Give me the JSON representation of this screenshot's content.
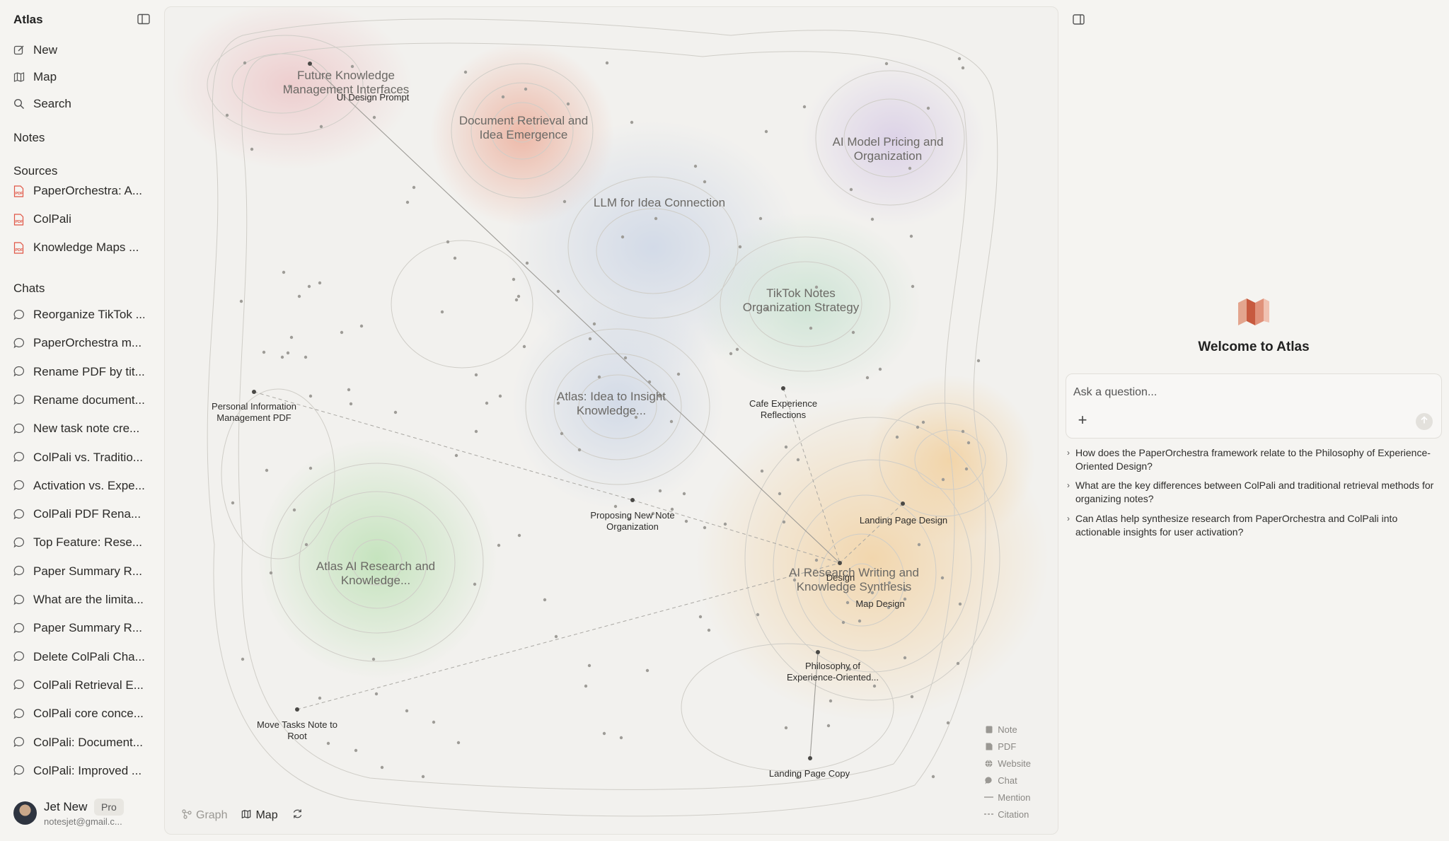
{
  "app": {
    "title": "Atlas"
  },
  "sidebar": {
    "nav": [
      {
        "label": "New",
        "icon": "edit-icon"
      },
      {
        "label": "Map",
        "icon": "map-icon"
      },
      {
        "label": "Search",
        "icon": "search-icon"
      }
    ],
    "notes_title": "Notes",
    "sources_title": "Sources",
    "sources": [
      {
        "label": "PaperOrchestra: A...",
        "icon": "pdf-icon"
      },
      {
        "label": "ColPali",
        "icon": "pdf-icon"
      },
      {
        "label": "Knowledge Maps ...",
        "icon": "pdf-icon"
      }
    ],
    "chats_title": "Chats",
    "chats": [
      "Reorganize TikTok ...",
      "PaperOrchestra m...",
      "Rename PDF by tit...",
      "Rename document...",
      "New task note cre...",
      "ColPali vs. Traditio...",
      "Activation vs. Expe...",
      "ColPali PDF Rena...",
      "Top Feature: Rese...",
      "Paper Summary R...",
      "What are the limita...",
      "Paper Summary R...",
      "Delete ColPali Cha...",
      "ColPali Retrieval E...",
      "ColPali core conce...",
      "ColPali: Document...",
      "ColPali: Improved ..."
    ],
    "user": {
      "name": "Jet New",
      "plan": "Pro",
      "email": "notesjet@gmail.c..."
    }
  },
  "map": {
    "clusters": [
      {
        "label": "Future Knowledge\nManagement Interfaces",
        "color": "#e9a3a8"
      },
      {
        "label": "Document Retrieval and\nIdea Emergence",
        "color": "#e9967a"
      },
      {
        "label": "AI Model Pricing and\nOrganization",
        "color": "#c6b3df"
      },
      {
        "label": "LLM for Idea Connection",
        "color": "#b9c7de"
      },
      {
        "label": "TikTok Notes\nOrganization Strategy",
        "color": "#b5d6c0"
      },
      {
        "label": "Atlas: Idea to Insight\nKnowledge...",
        "color": "#a9b9dc"
      },
      {
        "label": "Atlas AI Research and\nKnowledge...",
        "color": "#a9d6a0"
      },
      {
        "label": "AI Research Writing and\nKnowledge Synthesis",
        "color": "#efc98f"
      }
    ],
    "nodes": [
      "UI Design Prompt",
      "Personal Information\nManagement PDF",
      "Cafe Experience\nReflections",
      "Proposing New Note\nOrganization",
      "Landing Page Design",
      "Design",
      "Map Design",
      "Philosophy of\nExperience-Oriented...",
      "Move Tasks Note to\nRoot",
      "Landing Page Copy"
    ],
    "toolbar": {
      "graph": "Graph",
      "map": "Map"
    },
    "legend": [
      "Note",
      "PDF",
      "Website",
      "Chat",
      "Mention",
      "Citation"
    ]
  },
  "panel": {
    "welcome": "Welcome to Atlas",
    "ask_placeholder": "Ask a question...",
    "suggestions": [
      "How does the PaperOrchestra framework relate to the Philosophy of Experience-Oriented Design?",
      "What are the key differences between ColPali and traditional retrieval methods for organizing notes?",
      "Can Atlas help synthesize research from PaperOrchestra and ColPali into actionable insights for user activation?"
    ]
  }
}
